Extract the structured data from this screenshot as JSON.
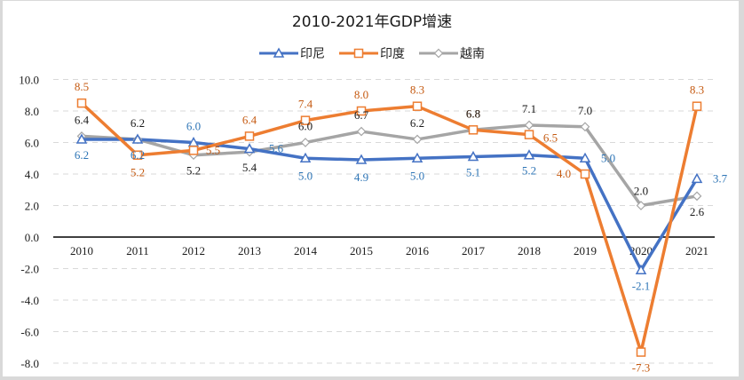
{
  "chart_data": {
    "type": "line",
    "title": "2010-2021年GDP增速",
    "xlabel": "",
    "ylabel": "",
    "categories": [
      "2010",
      "2011",
      "2012",
      "2013",
      "2014",
      "2015",
      "2016",
      "2017",
      "2018",
      "2019",
      "2020",
      "2021"
    ],
    "ylim": [
      -8.0,
      10.0
    ],
    "yticks": [
      "10.0",
      "8.0",
      "6.0",
      "4.0",
      "2.0",
      "0.0",
      "-2.0",
      "-4.0",
      "-6.0",
      "-8.0"
    ],
    "ytick_values": [
      10,
      8,
      6,
      4,
      2,
      0,
      -2,
      -4,
      -6,
      -8
    ],
    "grid": true,
    "legend_position": "top-center",
    "series": [
      {
        "name": "印尼",
        "color": "#4472c4",
        "label_color": "#2e75b6",
        "marker": "triangle",
        "values": [
          6.2,
          6.2,
          6.0,
          5.6,
          5.0,
          4.9,
          5.0,
          5.1,
          5.2,
          5.0,
          -2.1,
          3.7
        ],
        "labels": [
          "6.2",
          "6.2",
          "6.0",
          "5.6",
          "5.0",
          "4.9",
          "5.0",
          "5.1",
          "5.2",
          "5.0",
          "-2.1",
          "3.7"
        ]
      },
      {
        "name": "印度",
        "color": "#ed7d31",
        "label_color": "#c55a11",
        "marker": "square",
        "values": [
          8.5,
          5.2,
          5.5,
          6.4,
          7.4,
          8.0,
          8.3,
          6.8,
          6.5,
          4.0,
          -7.3,
          8.3
        ],
        "labels": [
          "8.5",
          "5.2",
          "5.5",
          "6.4",
          "7.4",
          "8.0",
          "8.3",
          "6.8",
          "6.5",
          "4.0",
          "-7.3",
          "8.3"
        ]
      },
      {
        "name": "越南",
        "color": "#a5a5a5",
        "label_color": "#1a1a1a",
        "marker": "diamond",
        "values": [
          6.4,
          6.2,
          5.2,
          5.4,
          6.0,
          6.7,
          6.2,
          6.8,
          7.1,
          7.0,
          2.0,
          2.6
        ],
        "labels": [
          "6.4",
          "6.2",
          "5.2",
          "5.4",
          "6.0",
          "6.7",
          "6.2",
          "6.8",
          "7.1",
          "7.0",
          "2.0",
          "2.6"
        ]
      }
    ]
  }
}
